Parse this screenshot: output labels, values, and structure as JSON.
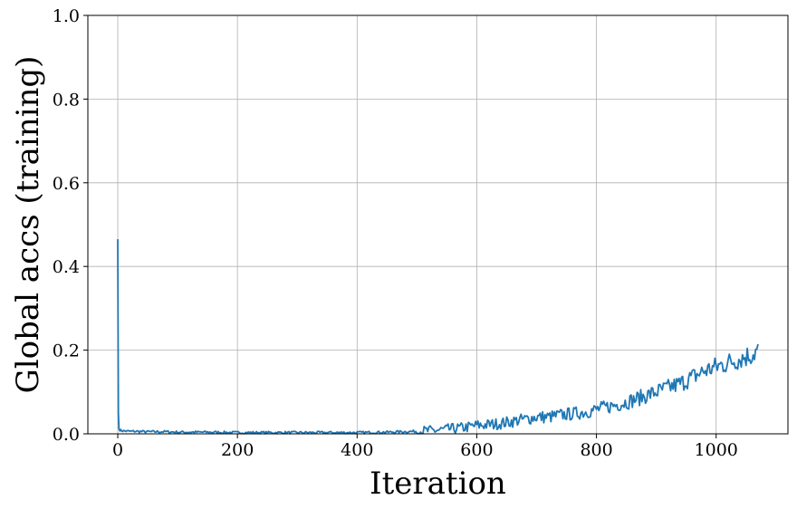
{
  "chart_data": {
    "type": "line",
    "title": "",
    "xlabel": "Iteration",
    "ylabel": "Global accs (training)",
    "xlim": [
      -50,
      1120
    ],
    "ylim": [
      0.0,
      1.0
    ],
    "grid": true,
    "x_ticks": [
      0,
      200,
      400,
      600,
      800,
      1000
    ],
    "x_tick_labels": [
      "0",
      "200",
      "400",
      "600",
      "800",
      "1000"
    ],
    "y_ticks": [
      0.0,
      0.2,
      0.4,
      0.6,
      0.8,
      1.0
    ],
    "y_tick_labels": [
      "0.0",
      "0.2",
      "0.4",
      "0.6",
      "0.8",
      "1.0"
    ],
    "series": [
      {
        "color": "#1f77b4",
        "x": [
          0,
          1,
          2,
          5,
          10,
          20,
          30,
          50,
          80,
          100,
          150,
          200,
          250,
          300,
          350,
          400,
          450,
          500,
          530,
          560,
          580,
          600,
          620,
          640,
          660,
          680,
          700,
          720,
          740,
          760,
          780,
          800,
          820,
          840,
          860,
          880,
          900,
          920,
          940,
          960,
          980,
          1000,
          1020,
          1040,
          1060,
          1070
        ],
        "y": [
          0.465,
          0.05,
          0.012,
          0.008,
          0.007,
          0.006,
          0.006,
          0.005,
          0.005,
          0.004,
          0.004,
          0.003,
          0.003,
          0.003,
          0.003,
          0.003,
          0.004,
          0.006,
          0.008,
          0.012,
          0.015,
          0.02,
          0.022,
          0.025,
          0.03,
          0.035,
          0.04,
          0.04,
          0.045,
          0.048,
          0.052,
          0.058,
          0.065,
          0.072,
          0.08,
          0.09,
          0.1,
          0.11,
          0.12,
          0.135,
          0.15,
          0.16,
          0.17,
          0.18,
          0.19,
          0.2
        ]
      }
    ]
  }
}
